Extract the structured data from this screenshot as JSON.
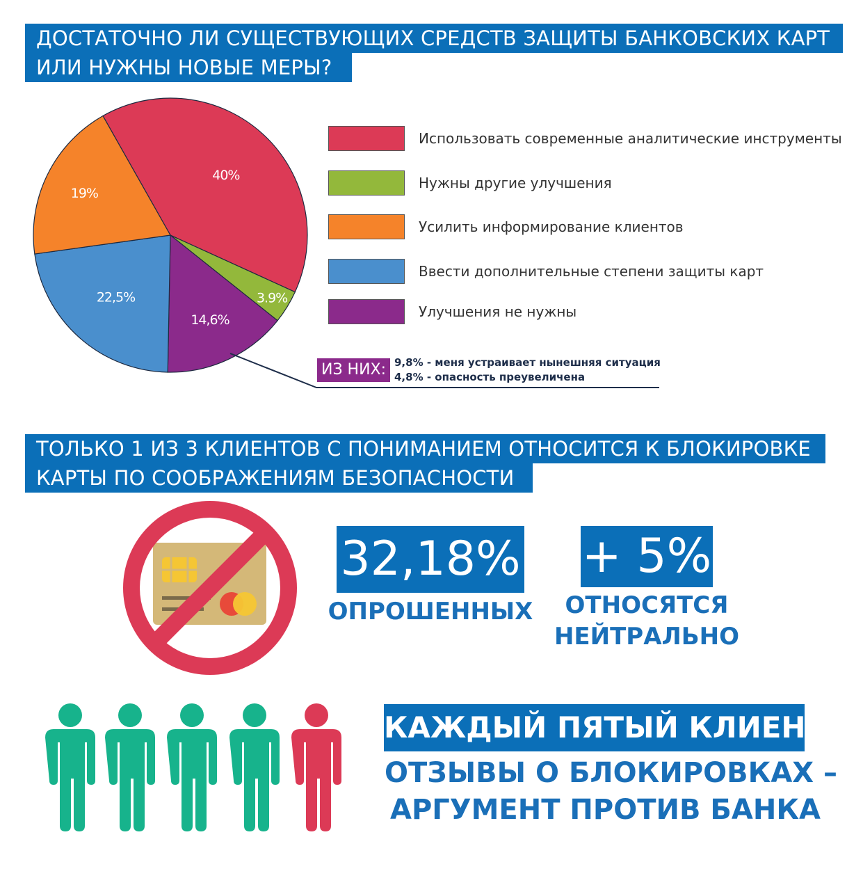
{
  "section1": {
    "title_line1": "ДОСТАТОЧНО ЛИ СУЩЕСТВУЮЩИХ СРЕДСТВ ЗАЩИТЫ БАНКОВСКИХ КАРТ",
    "title_line2": "ИЛИ НУЖНЫ НОВЫЕ МЕРЫ?"
  },
  "chart_data": {
    "type": "pie",
    "start_angle_deg": -29.5,
    "direction": "clockwise",
    "legend_placement": "right",
    "slices": [
      {
        "label": "Использовать современные аналитические инструменты",
        "value": 40,
        "display": "40%",
        "color": "#dc3a56"
      },
      {
        "label": "Нужны другие улучшения",
        "value": 3.9,
        "display": "3.9%",
        "color": "#93b83b"
      },
      {
        "label": "Улучшения не нужны",
        "value": 14.6,
        "display": "14,6%",
        "color": "#8b2a8b"
      },
      {
        "label": "Ввести дополнительные степени защиты карт",
        "value": 22.5,
        "display": "22,5%",
        "color": "#4a8fcd"
      },
      {
        "label": "Усилить информирование клиентов",
        "value": 19,
        "display": "19%",
        "color": "#f5832a"
      }
    ],
    "legend_order": [
      0,
      1,
      4,
      3,
      2
    ],
    "annotation": {
      "tag": "ИЗ НИХ:",
      "lines": [
        "9,8% - меня устраивает нынешняя ситуация",
        "4,8% - опасность преувеличена"
      ]
    }
  },
  "section2": {
    "title_line1": "ТОЛЬКО 1 ИЗ 3 КЛИЕНТОВ С ПОНИМАНИЕМ ОТНОСИТСЯ К БЛОКИРОВКЕ",
    "title_line2": "КАРТЫ ПО СООБРАЖЕНИЯМ БЕЗОПАСНОСТИ",
    "icon": "blocked-card-icon",
    "stat1_value": "32,18%",
    "stat1_caption": "ОПРОШЕННЫХ",
    "stat2_value": "+ 5%",
    "stat2_caption_line1": "ОТНОСЯТСЯ",
    "stat2_caption_line2": "НЕЙТРАЛЬНО"
  },
  "section3": {
    "people_icons": [
      "teal",
      "teal",
      "teal",
      "teal",
      "red"
    ],
    "highlighted_fraction": "1/5",
    "banner": "КАЖДЫЙ ПЯТЫЙ КЛИЕНТ",
    "line1": "ОТЗЫВЫ О БЛОКИРОВКАХ –",
    "line2": "АРГУМЕНТ ПРОТИВ БАНКА"
  },
  "colors": {
    "header_blue": "#0b6fb8",
    "text_blue": "#1a6fb8",
    "teal": "#17b38c",
    "red": "#dc3a56",
    "purple": "#8b2a8b"
  }
}
